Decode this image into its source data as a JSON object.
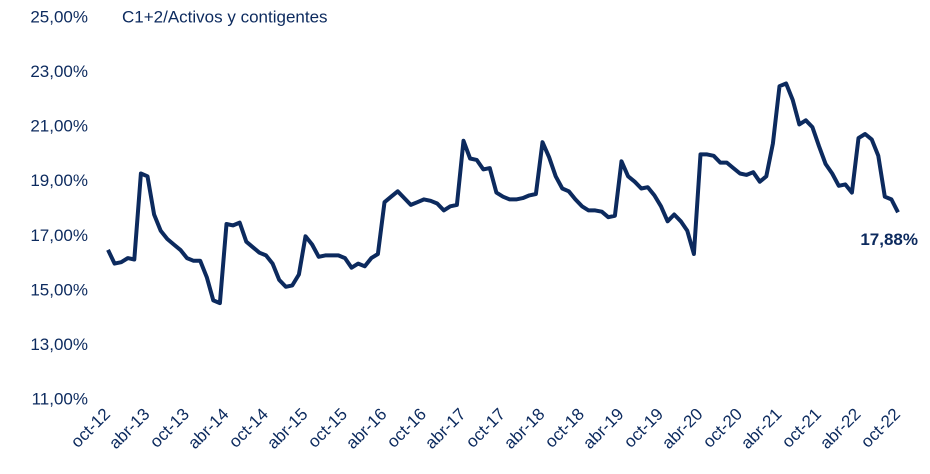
{
  "chart_data": {
    "type": "line",
    "title": "C1+2/Activos y contigentes",
    "annotation": "17,88%",
    "color": "#0c2a5e",
    "ylim": [
      11,
      25
    ],
    "yticks": [
      {
        "value": 11,
        "label": "11,00%"
      },
      {
        "value": 13,
        "label": "13,00%"
      },
      {
        "value": 15,
        "label": "15,00%"
      },
      {
        "value": 17,
        "label": "17,00%"
      },
      {
        "value": 19,
        "label": "19,00%"
      },
      {
        "value": 21,
        "label": "21,00%"
      },
      {
        "value": 23,
        "label": "23,00%"
      },
      {
        "value": 25,
        "label": "25,00%"
      }
    ],
    "categories": [
      "oct-12",
      null,
      null,
      null,
      null,
      null,
      "abr-13",
      null,
      null,
      null,
      null,
      null,
      "oct-13",
      null,
      null,
      null,
      null,
      null,
      "abr-14",
      null,
      null,
      null,
      null,
      null,
      "oct-14",
      null,
      null,
      null,
      null,
      null,
      "abr-15",
      null,
      null,
      null,
      null,
      null,
      "oct-15",
      null,
      null,
      null,
      null,
      null,
      "abr-16",
      null,
      null,
      null,
      null,
      null,
      "oct-16",
      null,
      null,
      null,
      null,
      null,
      "abr-17",
      null,
      null,
      null,
      null,
      null,
      "oct-17",
      null,
      null,
      null,
      null,
      null,
      "abr-18",
      null,
      null,
      null,
      null,
      null,
      "oct-18",
      null,
      null,
      null,
      null,
      null,
      "abr-19",
      null,
      null,
      null,
      null,
      null,
      "oct-19",
      null,
      null,
      null,
      null,
      null,
      "abr-20",
      null,
      null,
      null,
      null,
      null,
      "oct-20",
      null,
      null,
      null,
      null,
      null,
      "abr-21",
      null,
      null,
      null,
      null,
      null,
      "oct-21",
      null,
      null,
      null,
      null,
      null,
      "abr-22",
      null,
      null,
      null,
      null,
      null,
      "oct-22"
    ],
    "values": [
      16.5,
      16.0,
      16.05,
      16.2,
      16.15,
      19.3,
      19.2,
      17.8,
      17.2,
      16.9,
      16.7,
      16.5,
      16.2,
      16.1,
      16.1,
      15.5,
      14.65,
      14.55,
      17.45,
      17.4,
      17.5,
      16.8,
      16.6,
      16.4,
      16.3,
      16.0,
      15.4,
      15.15,
      15.2,
      15.6,
      17.0,
      16.7,
      16.25,
      16.3,
      16.3,
      16.3,
      16.2,
      15.85,
      16.0,
      15.9,
      16.2,
      16.35,
      18.25,
      18.45,
      18.65,
      18.4,
      18.15,
      18.25,
      18.35,
      18.3,
      18.2,
      17.95,
      18.1,
      18.15,
      20.5,
      19.85,
      19.8,
      19.45,
      19.5,
      18.6,
      18.45,
      18.35,
      18.35,
      18.4,
      18.5,
      18.55,
      20.45,
      19.9,
      19.2,
      18.75,
      18.65,
      18.35,
      18.1,
      17.95,
      17.95,
      17.9,
      17.7,
      17.75,
      19.75,
      19.2,
      19.0,
      18.75,
      18.8,
      18.5,
      18.1,
      17.55,
      17.8,
      17.55,
      17.2,
      16.35,
      20.0,
      20.0,
      19.95,
      19.7,
      19.7,
      19.5,
      19.3,
      19.25,
      19.35,
      19.0,
      19.2,
      20.4,
      22.5,
      22.6,
      22.0,
      21.1,
      21.25,
      21.0,
      20.3,
      19.65,
      19.3,
      18.85,
      18.9,
      18.6,
      20.6,
      20.75,
      20.55,
      19.95,
      18.45,
      18.35,
      17.88
    ]
  }
}
